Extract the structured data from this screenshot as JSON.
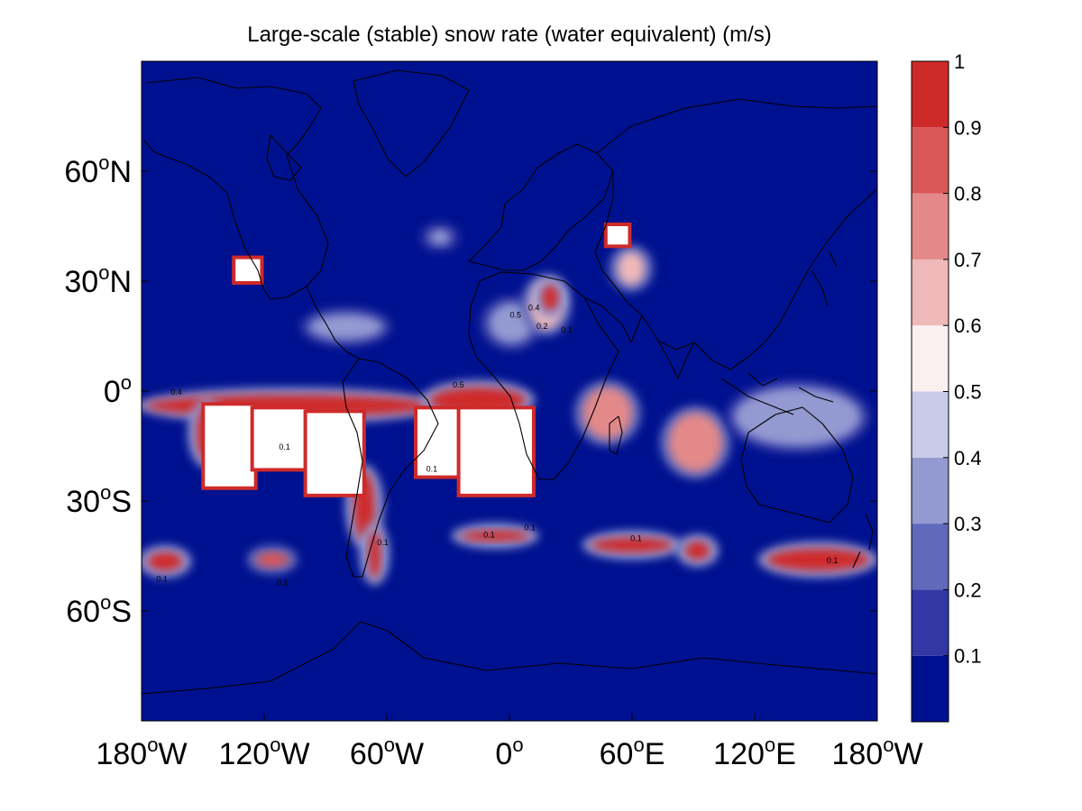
{
  "chart_data": {
    "type": "heatmap",
    "title": "Large-scale (stable) snow rate (water equivalent) (m/s)",
    "x_ticks": [
      {
        "value": -180,
        "deg": "180",
        "hemi": "W"
      },
      {
        "value": -120,
        "deg": "120",
        "hemi": "W"
      },
      {
        "value": -60,
        "deg": "60",
        "hemi": "W"
      },
      {
        "value": 0,
        "deg": "0",
        "hemi": ""
      },
      {
        "value": 60,
        "deg": "60",
        "hemi": "E"
      },
      {
        "value": 120,
        "deg": "120",
        "hemi": "E"
      },
      {
        "value": 180,
        "deg": "180",
        "hemi": "W"
      }
    ],
    "y_ticks": [
      {
        "value": 60,
        "deg": "60",
        "hemi": "N"
      },
      {
        "value": 30,
        "deg": "30",
        "hemi": "N"
      },
      {
        "value": 0,
        "deg": "0",
        "hemi": ""
      },
      {
        "value": -30,
        "deg": "30",
        "hemi": "S"
      },
      {
        "value": -60,
        "deg": "60",
        "hemi": "S"
      }
    ],
    "xlim": [
      -180,
      180
    ],
    "ylim": [
      -90,
      90
    ],
    "colorbar": {
      "levels": [
        0,
        0.1,
        0.2,
        0.3,
        0.4,
        0.5,
        0.6,
        0.7,
        0.8,
        0.9,
        1.0
      ],
      "tick_labels": [
        "0.1",
        "0.2",
        "0.3",
        "0.4",
        "0.5",
        "0.6",
        "0.7",
        "0.8",
        "0.9",
        "1"
      ],
      "colors": [
        "#00118f",
        "#3138a5",
        "#6169bb",
        "#9399d1",
        "#c9cbe8",
        "#fbf0f0",
        "#efb9b9",
        "#e38989",
        "#d95757",
        "#cf2a2a"
      ],
      "placement": "right"
    },
    "background_value": 0.05,
    "features": [
      {
        "kind": "missing",
        "lon": [
          -149,
          -125
        ],
        "lat": [
          -26,
          -4
        ]
      },
      {
        "kind": "missing",
        "lon": [
          -125,
          -99
        ],
        "lat": [
          -21,
          -5
        ]
      },
      {
        "kind": "missing",
        "lon": [
          -99,
          -72
        ],
        "lat": [
          -28,
          -6
        ]
      },
      {
        "kind": "missing",
        "lon": [
          -45,
          -24
        ],
        "lat": [
          -23,
          -5
        ]
      },
      {
        "kind": "missing",
        "lon": [
          -24,
          11
        ],
        "lat": [
          -28,
          -5
        ]
      },
      {
        "kind": "missing",
        "lon": [
          -134,
          -122
        ],
        "lat": [
          30,
          36
        ]
      },
      {
        "kind": "missing",
        "lon": [
          48,
          58
        ],
        "lat": [
          40,
          45
        ]
      },
      {
        "kind": "band",
        "lon": [
          -178,
          -38
        ],
        "lat": [
          -7,
          -1
        ],
        "value": 0.9
      },
      {
        "kind": "band",
        "lon": [
          -153,
          -143
        ],
        "lat": [
          -19,
          -4
        ],
        "value": 0.9
      },
      {
        "kind": "band",
        "lon": [
          -39,
          8
        ],
        "lat": [
          -6,
          1
        ],
        "value": 0.95
      },
      {
        "kind": "band",
        "lon": [
          -76,
          -66
        ],
        "lat": [
          -41,
          -22
        ],
        "value": 0.9
      },
      {
        "kind": "band",
        "lon": [
          -69,
          -63
        ],
        "lat": [
          -51,
          -38
        ],
        "value": 0.9
      },
      {
        "kind": "band",
        "lon": [
          -10,
          12
        ],
        "lat": [
          13,
          24
        ],
        "value": 0.35
      },
      {
        "kind": "band",
        "lon": [
          10,
          26
        ],
        "lat": [
          17,
          30
        ],
        "value": 0.65
      },
      {
        "kind": "band",
        "lon": [
          16,
          24
        ],
        "lat": [
          22,
          29
        ],
        "value": 0.9
      },
      {
        "kind": "band",
        "lon": [
          36,
          60
        ],
        "lat": [
          -13,
          1
        ],
        "value": 0.75
      },
      {
        "kind": "band",
        "lon": [
          78,
          104
        ],
        "lat": [
          -22,
          -6
        ],
        "value": 0.7
      },
      {
        "kind": "band",
        "lon": [
          110,
          172
        ],
        "lat": [
          -15,
          1
        ],
        "value": 0.35
      },
      {
        "kind": "band",
        "lon": [
          -24,
          10
        ],
        "lat": [
          -41,
          -38
        ],
        "value": 0.9
      },
      {
        "kind": "band",
        "lon": [
          40,
          80
        ],
        "lat": [
          -44,
          -40
        ],
        "value": 0.95
      },
      {
        "kind": "band",
        "lon": [
          86,
          98
        ],
        "lat": [
          -46,
          -41
        ],
        "value": 0.9
      },
      {
        "kind": "band",
        "lon": [
          -177,
          -160
        ],
        "lat": [
          -49,
          -44
        ],
        "value": 0.9
      },
      {
        "kind": "band",
        "lon": [
          -124,
          -108
        ],
        "lat": [
          -48,
          -44
        ],
        "value": 0.85
      },
      {
        "kind": "band",
        "lon": [
          126,
          176
        ],
        "lat": [
          -49,
          -43
        ],
        "value": 0.9
      },
      {
        "kind": "band",
        "lon": [
          -98,
          -62
        ],
        "lat": [
          14,
          21
        ],
        "value": 0.35
      },
      {
        "kind": "band",
        "lon": [
          -39,
          -29
        ],
        "lat": [
          40,
          44
        ],
        "value": 0.35
      },
      {
        "kind": "band",
        "lon": [
          53,
          66
        ],
        "lat": [
          29,
          38
        ],
        "value": 0.6
      }
    ],
    "contour_labels": [
      {
        "text": "0.5",
        "lon": 3,
        "lat": 20
      },
      {
        "text": "0.4",
        "lon": 12,
        "lat": 22
      },
      {
        "text": "0.2",
        "lon": 16,
        "lat": 17
      },
      {
        "text": "0.1",
        "lon": 28,
        "lat": 16
      },
      {
        "text": "0.1",
        "lon": -38,
        "lat": -22
      },
      {
        "text": "0.1",
        "lon": -110,
        "lat": -16
      },
      {
        "text": "0.4",
        "lon": -163,
        "lat": -1
      },
      {
        "text": "0.5",
        "lon": -25,
        "lat": 1
      },
      {
        "text": "0.1",
        "lon": 10,
        "lat": -38
      },
      {
        "text": "0.1",
        "lon": 62,
        "lat": -41
      },
      {
        "text": "0.1",
        "lon": -170,
        "lat": -52
      },
      {
        "text": "0.1",
        "lon": -111,
        "lat": -53
      },
      {
        "text": "0.1",
        "lon": -62,
        "lat": -42
      },
      {
        "text": "0.1",
        "lon": -10,
        "lat": -40
      },
      {
        "text": "0.1",
        "lon": 158,
        "lat": -47
      }
    ]
  }
}
